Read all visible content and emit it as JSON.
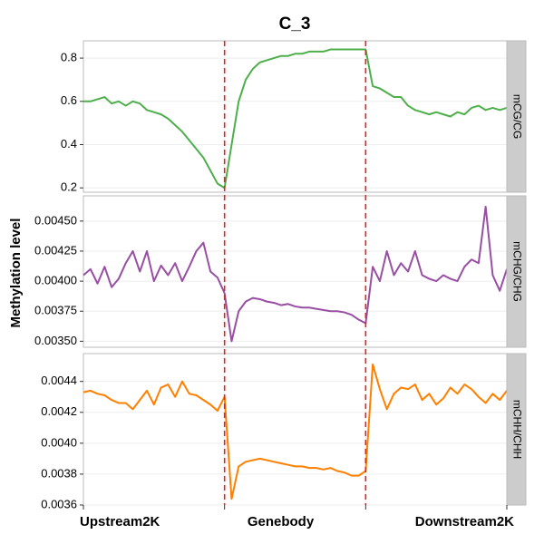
{
  "chart_data": {
    "type": "line",
    "title": "C_3",
    "y_label": "Methylation level",
    "categories": [
      "Upstream2K",
      "Genebody",
      "Downstream2K"
    ],
    "xlim": [
      0,
      60
    ],
    "vlines": [
      20,
      40
    ],
    "vline_color": "#dd2222",
    "x": [
      0,
      1,
      2,
      3,
      4,
      5,
      6,
      7,
      8,
      9,
      10,
      11,
      12,
      13,
      14,
      15,
      16,
      17,
      18,
      19,
      20,
      21,
      22,
      23,
      24,
      25,
      26,
      27,
      28,
      29,
      30,
      31,
      32,
      33,
      34,
      35,
      36,
      37,
      38,
      39,
      40,
      41,
      42,
      43,
      44,
      45,
      46,
      47,
      48,
      49,
      50,
      51,
      52,
      53,
      54,
      55,
      56,
      57,
      58,
      59,
      60
    ],
    "grid": true,
    "panels": [
      {
        "strip": "mCG/CG",
        "color": "#4daf4a",
        "ylim": [
          0.18,
          0.88
        ],
        "yticks": [
          0.2,
          0.4,
          0.6,
          0.8
        ],
        "values": [
          0.6,
          0.6,
          0.61,
          0.62,
          0.59,
          0.6,
          0.58,
          0.6,
          0.59,
          0.56,
          0.55,
          0.54,
          0.52,
          0.49,
          0.46,
          0.42,
          0.38,
          0.34,
          0.28,
          0.22,
          0.2,
          0.4,
          0.6,
          0.7,
          0.75,
          0.78,
          0.79,
          0.8,
          0.81,
          0.81,
          0.82,
          0.82,
          0.83,
          0.83,
          0.83,
          0.84,
          0.84,
          0.84,
          0.84,
          0.84,
          0.84,
          0.67,
          0.66,
          0.64,
          0.62,
          0.62,
          0.58,
          0.56,
          0.55,
          0.54,
          0.55,
          0.54,
          0.53,
          0.55,
          0.54,
          0.57,
          0.58,
          0.56,
          0.57,
          0.56,
          0.57
        ]
      },
      {
        "strip": "mCHG/CHG",
        "color": "#984ea3",
        "ylim": [
          0.00345,
          0.00471
        ],
        "yticks": [
          {
            "value": 0.0035,
            "label": "0.00350"
          },
          0.00375,
          {
            "value": 0.004,
            "label": "0.00400"
          },
          0.00425,
          {
            "value": 0.0045,
            "label": "0.00450"
          }
        ],
        "values": [
          0.00405,
          0.0041,
          0.00398,
          0.00412,
          0.00395,
          0.00402,
          0.00415,
          0.00425,
          0.00408,
          0.00425,
          0.004,
          0.00413,
          0.00405,
          0.00415,
          0.004,
          0.00412,
          0.00425,
          0.00432,
          0.00408,
          0.00403,
          0.0039,
          0.0035,
          0.00375,
          0.00383,
          0.00386,
          0.00385,
          0.00383,
          0.00382,
          0.0038,
          0.00381,
          0.00379,
          0.00378,
          0.00378,
          0.00377,
          0.00376,
          0.00375,
          0.00375,
          0.00374,
          0.00372,
          0.00368,
          0.00365,
          0.00412,
          0.004,
          0.00425,
          0.00405,
          0.00415,
          0.00408,
          0.00425,
          0.00405,
          0.00402,
          0.004,
          0.00405,
          0.00402,
          0.004,
          0.00412,
          0.00418,
          0.00415,
          0.00462,
          0.00405,
          0.00392,
          0.0041
        ]
      },
      {
        "strip": "mCHH/CHH",
        "color": "#ff7f00",
        "ylim": [
          0.0036,
          0.00458
        ],
        "yticks": [
          0.0036,
          0.0038,
          {
            "value": 0.004,
            "label": "0.0040"
          },
          0.0042,
          0.0044
        ],
        "values": [
          0.00433,
          0.00434,
          0.00432,
          0.00431,
          0.00428,
          0.00426,
          0.00426,
          0.00422,
          0.00428,
          0.00434,
          0.00425,
          0.00436,
          0.00438,
          0.0043,
          0.0044,
          0.00432,
          0.00431,
          0.00428,
          0.00425,
          0.00421,
          0.0043,
          0.00364,
          0.00385,
          0.00388,
          0.00389,
          0.0039,
          0.00389,
          0.00388,
          0.00387,
          0.00386,
          0.00385,
          0.00385,
          0.00384,
          0.00384,
          0.00383,
          0.00384,
          0.00382,
          0.00381,
          0.00379,
          0.00379,
          0.00382,
          0.00451,
          0.00435,
          0.00422,
          0.00432,
          0.00436,
          0.00435,
          0.00438,
          0.00428,
          0.00432,
          0.00425,
          0.00429,
          0.00436,
          0.00432,
          0.00438,
          0.00435,
          0.0043,
          0.00426,
          0.00432,
          0.00428,
          0.00434
        ]
      }
    ]
  }
}
